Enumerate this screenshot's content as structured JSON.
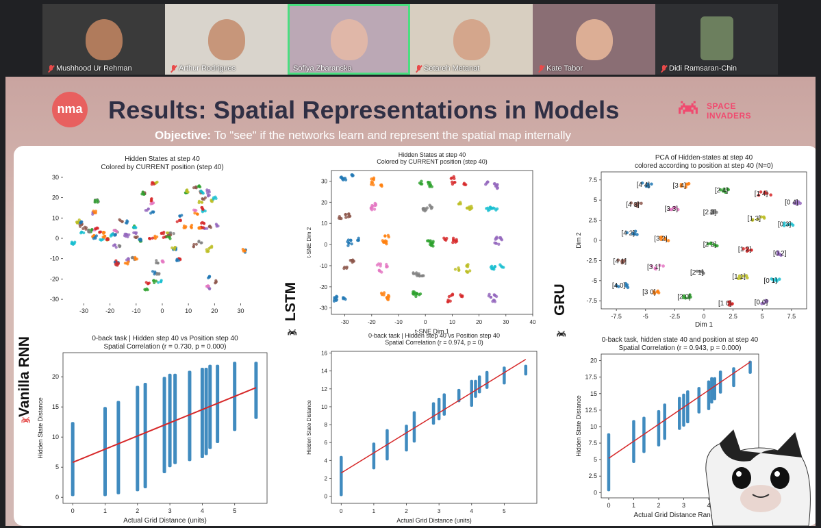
{
  "participants": [
    {
      "name": "Mushhood Ur Rehman",
      "muted": true,
      "bg": "#3a3a3a",
      "skin": "#b07b5c"
    },
    {
      "name": "Arthur Rodrigues",
      "muted": true,
      "bg": "#d9d4cc",
      "skin": "#c7967a"
    },
    {
      "name": "Sofiya Zbaranska",
      "muted": false,
      "bg": "#bba8b5",
      "skin": "#e0b7a8",
      "active": true
    },
    {
      "name": "Setareh Metanat",
      "muted": true,
      "bg": "#d8cfc1",
      "skin": "#d4a68c"
    },
    {
      "name": "Kate Tabor",
      "muted": true,
      "bg": "#8a6e74",
      "skin": "#dcae95"
    },
    {
      "name": "Didi Ramsaran-Chin",
      "muted": true,
      "bg": "#2f3033",
      "skin": "#6c7f5e"
    }
  ],
  "slide": {
    "logo_text": "nma",
    "title": "Results: Spatial Representations in Models",
    "brand": [
      "SPACE",
      "INVADERS"
    ],
    "objective_label": "Objective:",
    "objective_text": " To \"see\" if the networks learn and represent the spatial map internally",
    "row_labels": [
      "Vanilla RNN",
      "LSTM",
      "GRU"
    ]
  },
  "colors": {
    "accent": "#e8605f",
    "brand": "#f04a6f",
    "active_speaker": "#4ade80",
    "scatter": "#1f77b4",
    "fit_line": "#d62728"
  },
  "chart_data": [
    {
      "type": "scatter",
      "title": "Hidden States at step 40",
      "subtitle": "Colored by CURRENT position (step 40)",
      "xlabel": "",
      "ylabel": "",
      "xlim": [
        -38,
        38
      ],
      "ylim": [
        -32,
        32
      ],
      "xticks": [
        -30,
        -20,
        -10,
        0,
        10,
        20,
        30
      ],
      "yticks": [
        30,
        20,
        10,
        0,
        -10,
        -20,
        -30
      ],
      "clusters": 56,
      "seed": 7
    },
    {
      "type": "scatter",
      "title": "Hidden States at step 40",
      "subtitle": "Colored by CURRENT position (step 40)",
      "xlabel": "t-SNE Dim 1",
      "ylabel": "t-SNE Dim 2",
      "xlim": [
        -35,
        40
      ],
      "ylim": [
        -33,
        35
      ],
      "xticks": [
        -30,
        -20,
        -10,
        0,
        10,
        20,
        30,
        40
      ],
      "yticks": [
        30,
        20,
        10,
        0,
        -10,
        -20,
        -30
      ],
      "clusters": 25,
      "seed": 11
    },
    {
      "type": "scatter",
      "title": "PCA of Hidden-states at step 40",
      "subtitle": "colored according to position at step 40 (N=0)",
      "xlabel": "Dim 1",
      "ylabel": "Dim 2",
      "xlim": [
        -8.8,
        8.8
      ],
      "ylim": [
        -8.5,
        8.5
      ],
      "xticks": [
        -7.5,
        -5.0,
        -2.5,
        0.0,
        2.5,
        5.0,
        7.5
      ],
      "yticks": [
        7.5,
        5.0,
        2.5,
        0.0,
        -2.5,
        -5.0,
        -7.5
      ],
      "labels": [
        {
          "t": "[4 4]",
          "x": -5.2,
          "y": 6.9
        },
        {
          "t": "[3 4]",
          "x": -2.1,
          "y": 6.8
        },
        {
          "t": "[2 4]",
          "x": 1.5,
          "y": 6.2
        },
        {
          "t": "[1 4]",
          "x": 4.9,
          "y": 5.8
        },
        {
          "t": "[0 4]",
          "x": 7.5,
          "y": 4.7
        },
        {
          "t": "[4 3]",
          "x": -6.1,
          "y": 4.4
        },
        {
          "t": "[3 3]",
          "x": -2.8,
          "y": 3.9
        },
        {
          "t": "[2 3]",
          "x": 0.5,
          "y": 3.5
        },
        {
          "t": "[1 3]",
          "x": 4.3,
          "y": 2.7
        },
        {
          "t": "[0 3]",
          "x": 6.9,
          "y": 2.0
        },
        {
          "t": "[4 2]",
          "x": -6.5,
          "y": 0.9
        },
        {
          "t": "[3 2]",
          "x": -3.7,
          "y": 0.2
        },
        {
          "t": "[2 2]",
          "x": 0.5,
          "y": -0.5
        },
        {
          "t": "[1 2]",
          "x": 3.5,
          "y": -1.1
        },
        {
          "t": "[0 2]",
          "x": 6.5,
          "y": -1.6
        },
        {
          "t": "[4 1]",
          "x": -7.2,
          "y": -2.6
        },
        {
          "t": "[3 1]",
          "x": -4.3,
          "y": -3.3
        },
        {
          "t": "[2 1]",
          "x": -0.6,
          "y": -4.0
        },
        {
          "t": "[1 1]",
          "x": 3.0,
          "y": -4.5
        },
        {
          "t": "[0 1]",
          "x": 5.7,
          "y": -5.0
        },
        {
          "t": "[4 0]",
          "x": -7.3,
          "y": -5.6
        },
        {
          "t": "[3 0]",
          "x": -4.7,
          "y": -6.4
        },
        {
          "t": "[2 0]",
          "x": -1.7,
          "y": -7.0
        },
        {
          "t": "[1 0]",
          "x": 1.8,
          "y": -7.8
        },
        {
          "t": "[0 0]",
          "x": 4.9,
          "y": -7.7
        }
      ]
    },
    {
      "type": "scatter",
      "title": "0-back task | Hidden step 40 vs Position step 40",
      "subtitle": "Spatial Correlation (r = 0.730, p = 0.000)",
      "xlabel": "Actual Grid Distance (units)",
      "ylabel": "Hidden State Distance",
      "xlim": [
        -0.3,
        6.0
      ],
      "ylim": [
        -1,
        24
      ],
      "xticks": [
        0,
        1,
        2,
        3,
        4,
        5
      ],
      "yticks": [
        0,
        5,
        10,
        15,
        20
      ],
      "columns": [
        {
          "x": 0,
          "lo": 0.2,
          "hi": 12.5
        },
        {
          "x": 1,
          "lo": 0.2,
          "hi": 15
        },
        {
          "x": 1.41,
          "lo": 0.5,
          "hi": 16
        },
        {
          "x": 2,
          "lo": 1,
          "hi": 18.5
        },
        {
          "x": 2.24,
          "lo": 1.5,
          "hi": 19
        },
        {
          "x": 2.83,
          "lo": 4,
          "hi": 20
        },
        {
          "x": 3,
          "lo": 5,
          "hi": 20.5
        },
        {
          "x": 3.16,
          "lo": 5.5,
          "hi": 20.5
        },
        {
          "x": 3.61,
          "lo": 6,
          "hi": 21
        },
        {
          "x": 4,
          "lo": 6.5,
          "hi": 21.5
        },
        {
          "x": 4.12,
          "lo": 7,
          "hi": 21.5
        },
        {
          "x": 4.24,
          "lo": 8,
          "hi": 22
        },
        {
          "x": 4.47,
          "lo": 9,
          "hi": 22
        },
        {
          "x": 5,
          "lo": 11,
          "hi": 22.5
        },
        {
          "x": 5.66,
          "lo": 13,
          "hi": 22.5
        }
      ],
      "fit": [
        [
          0,
          5.8
        ],
        [
          5.66,
          18.2
        ]
      ]
    },
    {
      "type": "scatter",
      "title": "0-back task | Hidden step 40 vs Position step 40",
      "subtitle": "Spatial Correlation (r = 0.974, p = 0)",
      "xlabel": "Actual Grid Distance (units)",
      "ylabel": "Hidden State Distance",
      "xlim": [
        -0.3,
        6.0
      ],
      "ylim": [
        -0.8,
        16.2
      ],
      "xticks": [
        0,
        1,
        2,
        3,
        4,
        5
      ],
      "yticks": [
        0,
        2,
        4,
        6,
        8,
        10,
        12,
        14,
        16
      ],
      "columns": [
        {
          "x": 0,
          "lo": 0,
          "hi": 4.5
        },
        {
          "x": 1,
          "lo": 3,
          "hi": 6
        },
        {
          "x": 1.41,
          "lo": 4,
          "hi": 7.5
        },
        {
          "x": 2,
          "lo": 5,
          "hi": 8
        },
        {
          "x": 2.24,
          "lo": 6,
          "hi": 9.5
        },
        {
          "x": 2.83,
          "lo": 8,
          "hi": 10.5
        },
        {
          "x": 3,
          "lo": 8.5,
          "hi": 11
        },
        {
          "x": 3.16,
          "lo": 9,
          "hi": 11.5
        },
        {
          "x": 3.61,
          "lo": 10.5,
          "hi": 12
        },
        {
          "x": 4,
          "lo": 10,
          "hi": 13
        },
        {
          "x": 4.12,
          "lo": 11,
          "hi": 13
        },
        {
          "x": 4.24,
          "lo": 11.5,
          "hi": 13.5
        },
        {
          "x": 4.47,
          "lo": 12,
          "hi": 14
        },
        {
          "x": 5,
          "lo": 12.5,
          "hi": 14.5
        },
        {
          "x": 5.66,
          "lo": 13.5,
          "hi": 14.7
        }
      ],
      "fit": [
        [
          0,
          2.6
        ],
        [
          5.66,
          15.3
        ]
      ]
    },
    {
      "type": "scatter",
      "title": "0-back task, hidden state 40 and position at step 40",
      "subtitle": "Spatial Correlation (r = 0.943, p = 0.000)",
      "xlabel": "Actual Grid Distance Range (u",
      "ylabel": "Hidden State Distance",
      "xlim": [
        -0.3,
        6.0
      ],
      "ylim": [
        -0.8,
        21
      ],
      "xticks": [
        0,
        1,
        2,
        3,
        4
      ],
      "yticks": [
        0.0,
        2.5,
        5.0,
        7.5,
        10.0,
        12.5,
        15.0,
        17.5,
        20.0
      ],
      "columns": [
        {
          "x": 0,
          "lo": 0.2,
          "hi": 9
        },
        {
          "x": 1,
          "lo": 4.5,
          "hi": 11
        },
        {
          "x": 1.41,
          "lo": 6,
          "hi": 11.5
        },
        {
          "x": 2,
          "lo": 7,
          "hi": 12.5
        },
        {
          "x": 2.24,
          "lo": 8,
          "hi": 13.5
        },
        {
          "x": 2.83,
          "lo": 9.5,
          "hi": 14.5
        },
        {
          "x": 3,
          "lo": 10,
          "hi": 15
        },
        {
          "x": 3.16,
          "lo": 10.5,
          "hi": 15.5
        },
        {
          "x": 3.61,
          "lo": 12,
          "hi": 16
        },
        {
          "x": 4,
          "lo": 12.5,
          "hi": 17
        },
        {
          "x": 4.12,
          "lo": 13.5,
          "hi": 17.5
        },
        {
          "x": 4.24,
          "lo": 14,
          "hi": 17.5
        },
        {
          "x": 4.47,
          "lo": 15,
          "hi": 18.5
        },
        {
          "x": 5,
          "lo": 16,
          "hi": 19
        },
        {
          "x": 5.66,
          "lo": 18,
          "hi": 20
        }
      ],
      "fit": [
        [
          0,
          5.2
        ],
        [
          5.66,
          19.8
        ]
      ]
    }
  ]
}
